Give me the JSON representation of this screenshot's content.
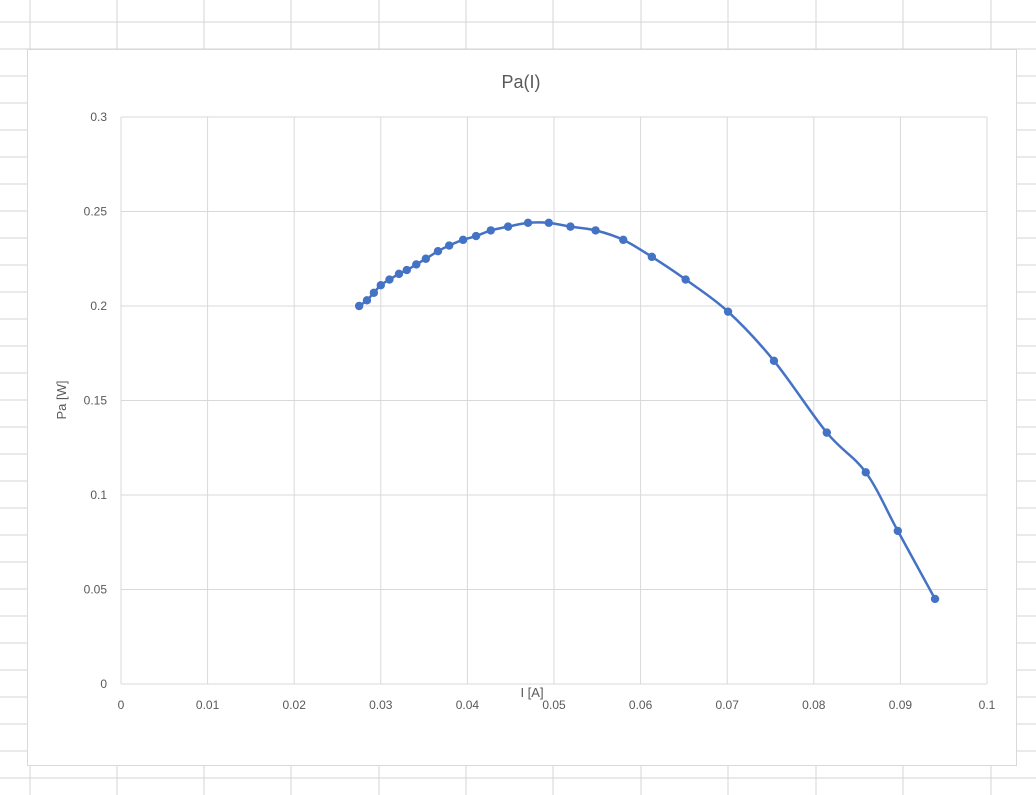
{
  "spreadsheet": {
    "gridline_color": "#d4d4d4"
  },
  "chart_data": {
    "type": "scatter",
    "style": "smooth-line-with-markers",
    "title": "Pa(I)",
    "xlabel": "I [A]",
    "ylabel": "Pa [W]",
    "xlim": [
      0,
      0.1
    ],
    "ylim": [
      0,
      0.3
    ],
    "x_ticks": [
      "0",
      "0.01",
      "0.02",
      "0.03",
      "0.04",
      "0.05",
      "0.06",
      "0.07",
      "0.08",
      "0.09",
      "0.1"
    ],
    "y_ticks": [
      "0",
      "0.05",
      "0.1",
      "0.15",
      "0.2",
      "0.25",
      "0.3"
    ],
    "grid": true,
    "legend": "none",
    "series": [
      {
        "color": "#4472c4",
        "x": [
          0.0275,
          0.0284,
          0.0292,
          0.03,
          0.031,
          0.0321,
          0.033,
          0.0341,
          0.0352,
          0.0366,
          0.0379,
          0.0395,
          0.041,
          0.0427,
          0.0447,
          0.047,
          0.0494,
          0.0519,
          0.0548,
          0.058,
          0.0613,
          0.0652,
          0.0701,
          0.0754,
          0.0815,
          0.086,
          0.0897,
          0.094
        ],
        "y": [
          0.2,
          0.203,
          0.207,
          0.211,
          0.214,
          0.217,
          0.219,
          0.222,
          0.225,
          0.229,
          0.232,
          0.235,
          0.237,
          0.24,
          0.242,
          0.244,
          0.244,
          0.242,
          0.24,
          0.235,
          0.226,
          0.214,
          0.197,
          0.171,
          0.133,
          0.112,
          0.081,
          0.045
        ]
      }
    ]
  }
}
